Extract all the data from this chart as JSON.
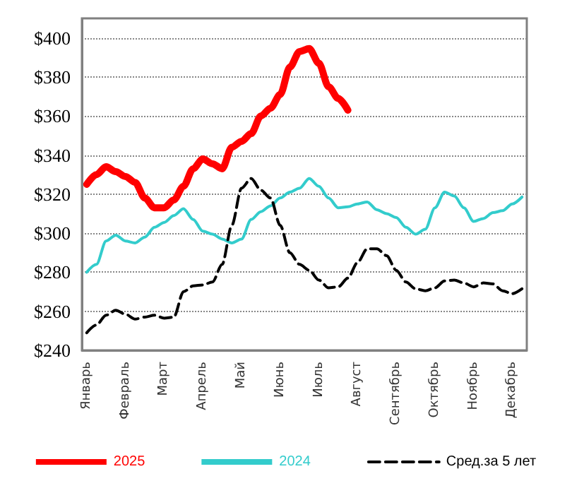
{
  "chart_data": {
    "type": "line",
    "categories": [
      "Январь",
      null,
      null,
      null,
      "Февраль",
      null,
      null,
      null,
      "Март",
      null,
      null,
      null,
      "Апрель",
      null,
      null,
      null,
      "Май",
      null,
      null,
      null,
      "Июнь",
      null,
      null,
      null,
      "Июль",
      null,
      null,
      null,
      "Август",
      null,
      null,
      null,
      "Сентябрь",
      null,
      null,
      null,
      "Октябрь",
      null,
      null,
      null,
      "Ноябрь",
      null,
      null,
      null,
      "Декабрь",
      null
    ],
    "ylim": [
      240,
      410
    ],
    "yticks": [
      {
        "value": 240,
        "label": "$240"
      },
      {
        "value": 260,
        "label": "$260"
      },
      {
        "value": 280,
        "label": "$280"
      },
      {
        "value": 300,
        "label": "$300"
      },
      {
        "value": 320,
        "label": "$320"
      },
      {
        "value": 340,
        "label": "$340"
      },
      {
        "value": 360,
        "label": "$360"
      },
      {
        "value": 380,
        "label": "$380"
      },
      {
        "value": 400,
        "label": "$400"
      }
    ],
    "grid": "y",
    "legend": "bottom",
    "marker": "none",
    "series": [
      {
        "name": "2025",
        "color": "#ff0000",
        "line_style": "solid",
        "values": [
          325,
          330,
          334,
          331.5,
          329,
          326,
          318,
          313,
          313,
          317,
          324,
          333,
          338,
          335.5,
          333,
          344,
          347,
          351,
          360,
          364,
          371,
          385,
          393,
          394.5,
          387,
          375,
          369,
          363,
          null,
          null,
          null,
          null,
          null,
          null,
          null,
          null,
          null,
          null,
          null,
          null,
          null,
          null,
          null,
          null,
          null,
          null
        ]
      },
      {
        "name": "2024",
        "color": "#33cccc",
        "line_style": "solid",
        "values": [
          280,
          284,
          296,
          299,
          296,
          295,
          298,
          303,
          305.5,
          309,
          312.5,
          307,
          301,
          299.5,
          297,
          295,
          297,
          307,
          311,
          314,
          318,
          321,
          323,
          328,
          324,
          318,
          313,
          313.5,
          315,
          316,
          312,
          310,
          308,
          303,
          299.5,
          302,
          313,
          321,
          319,
          313,
          306,
          307.5,
          310.5,
          311.5,
          315,
          318.5
        ]
      },
      {
        "name": "Сред.за 5 лет",
        "color": "#000000",
        "line_style": "dashed",
        "values": [
          249,
          253,
          258,
          260.5,
          258.5,
          256,
          257,
          258,
          256.5,
          257,
          270,
          273,
          273.5,
          275,
          284,
          304,
          323,
          328,
          322,
          318,
          304,
          290,
          284,
          281,
          276,
          272,
          272.5,
          277,
          285,
          292,
          292,
          288.5,
          281,
          275,
          271.5,
          270.5,
          272,
          275.5,
          276,
          274.5,
          272.5,
          274.5,
          274,
          270.5,
          269,
          271.5
        ]
      }
    ]
  }
}
